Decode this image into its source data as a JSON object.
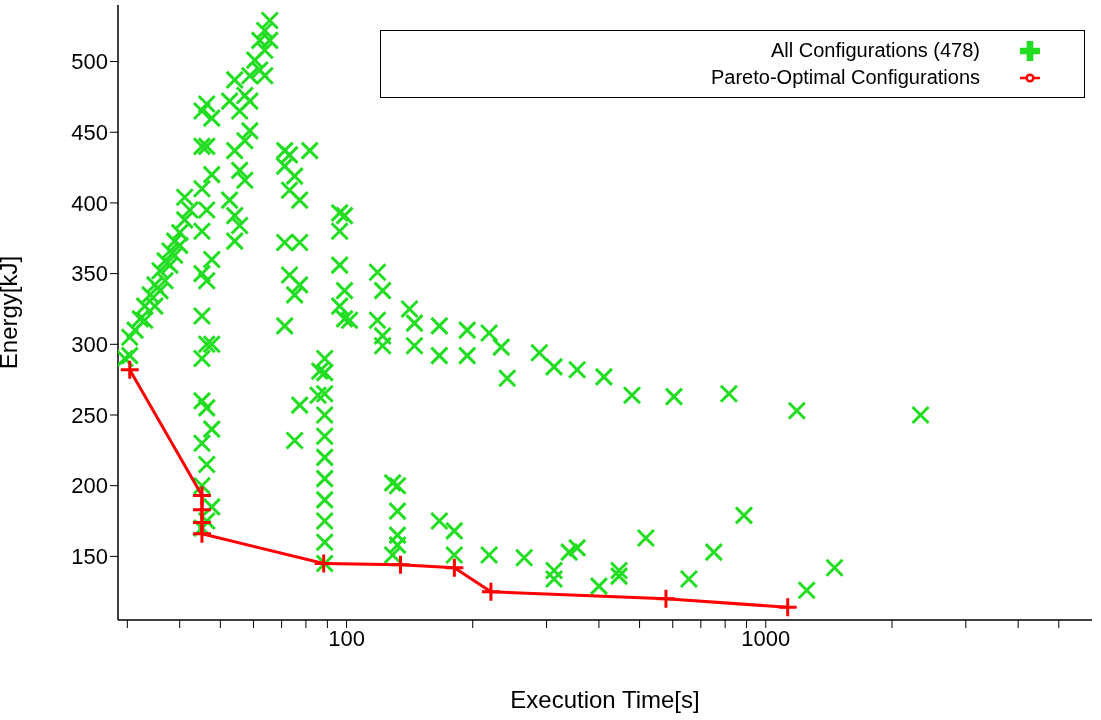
{
  "chart_data": {
    "type": "scatter",
    "xlabel": "Execution Time[s]",
    "ylabel": "Energy[kJ]",
    "log": "x",
    "xlim": [
      28.5,
      6000
    ],
    "ylim": [
      105,
      540
    ],
    "xticks": [
      {
        "value": 30,
        "label": null
      },
      {
        "value": 40,
        "label": null
      },
      {
        "value": 50,
        "label": null
      },
      {
        "value": 60,
        "label": null
      },
      {
        "value": 70,
        "label": null
      },
      {
        "value": 80,
        "label": null
      },
      {
        "value": 90,
        "label": null
      },
      100,
      {
        "value": 200,
        "label": null
      },
      {
        "value": 300,
        "label": null
      },
      {
        "value": 400,
        "label": null
      },
      {
        "value": 500,
        "label": null
      },
      {
        "value": 600,
        "label": null
      },
      {
        "value": 700,
        "label": null
      },
      {
        "value": 800,
        "label": null
      },
      {
        "value": 900,
        "label": null
      },
      1000,
      {
        "value": 2000,
        "label": null
      },
      {
        "value": 3000,
        "label": null
      },
      {
        "value": 4000,
        "label": null
      },
      {
        "value": 5000,
        "label": null
      }
    ],
    "yticks": [
      150,
      200,
      250,
      300,
      350,
      400,
      450,
      500
    ],
    "grid": false,
    "legend": "top right",
    "series": [
      {
        "name": "All Configurations (478)",
        "type": "scatter",
        "color": "#22dd22",
        "marker": "cross",
        "x": [
          29.6,
          30.4,
          30.4,
          31.3,
          32.2,
          33.0,
          34.0,
          34.9,
          35.9,
          36.9,
          37.9,
          38.9,
          40.0,
          41.1,
          42.3,
          41.1,
          33.0,
          34.9,
          35.9,
          36.9,
          37.9,
          38.9,
          40.0,
          45.2,
          45.2,
          45.2,
          45.2,
          45.2,
          45.2,
          45.2,
          45.2,
          45.2,
          45.2,
          45.2,
          46.4,
          46.4,
          46.4,
          46.4,
          46.4,
          46.4,
          46.4,
          46.4,
          47.7,
          47.7,
          47.7,
          47.7,
          47.7,
          47.7,
          52.6,
          54.1,
          55.6,
          57.2,
          58.8,
          54.1,
          55.6,
          57.2,
          52.6,
          54.1,
          54.1,
          55.6,
          57.2,
          58.8,
          58.8,
          60.4,
          62.1,
          63.8,
          65.6,
          62.1,
          63.8,
          65.6,
          63.8,
          71.2,
          73.1,
          71.2,
          75.2,
          73.1,
          77.3,
          81.7,
          71.2,
          77.3,
          73.1,
          75.2,
          71.2,
          77.3,
          75.2,
          77.3,
          88.7,
          88.7,
          88.7,
          88.7,
          88.7,
          88.7,
          88.7,
          88.7,
          88.7,
          88.7,
          88.7,
          86.3,
          85.5,
          96.3,
          98.9,
          96.3,
          96.3,
          98.9,
          96.3,
          101.7,
          98.9,
          118.5,
          121.9,
          118.5,
          121.9,
          121.9,
          128.8,
          132.3,
          132.3,
          132.3,
          128.8,
          132.3,
          141.3,
          145.2,
          145.2,
          166.5,
          166.5,
          194,
          194,
          166.5,
          180.7,
          180.7,
          218.8,
          233.9,
          241.7,
          218.8,
          265.3,
          312.6,
          312.6,
          288.3,
          312.6,
          354.9,
          411,
          479.6,
          604,
          816.6,
          1186,
          2339,
          339.6,
          354.9,
          400,
          446.7,
          446.7,
          517.6,
          655.6,
          751.6,
          887,
          1252,
          1459
        ],
        "values": [
          290,
          305,
          292,
          310,
          318,
          327,
          335,
          342,
          352,
          359,
          366,
          373,
          379,
          388,
          395,
          404,
          317,
          327,
          338,
          345,
          356,
          363,
          370,
          170,
          200,
          230,
          260,
          290,
          320,
          350,
          380,
          410,
          440,
          465,
          175,
          215,
          255,
          300,
          345,
          395,
          440,
          470,
          185,
          240,
          300,
          360,
          420,
          460,
          472,
          487,
          465,
          476,
          451,
          437,
          423,
          444,
          402,
          391,
          373,
          384,
          416,
          472,
          490,
          501,
          515,
          522,
          529,
          494,
          508,
          515,
          490,
          437,
          434,
          426,
          419,
          409,
          402,
          437,
          372,
          372,
          349,
          335,
          313,
          342,
          232,
          257,
          145,
          160,
          175,
          190,
          205,
          220,
          235,
          250,
          265,
          280,
          290,
          281,
          264,
          393,
          391,
          380,
          356,
          338,
          327,
          317,
          318,
          351,
          338,
          317,
          306,
          299,
          202,
          200,
          182,
          165,
          151,
          158,
          325,
          315,
          299,
          313,
          292,
          310,
          292,
          175,
          168,
          151,
          308,
          298,
          276,
          151,
          149,
          140,
          134,
          294,
          284,
          282,
          277,
          264,
          263,
          265,
          253,
          250,
          153,
          156,
          129,
          140,
          136,
          163,
          134,
          153,
          179,
          126,
          142
        ]
      },
      {
        "name": "Pareto-Optimal Configurations",
        "type": "line",
        "color": "#ff0000",
        "marker": "cross",
        "line_style": "solid",
        "x": [
          30.4,
          45.2,
          45.2,
          45.2,
          45.2,
          88.2,
          134.5,
          180.8,
          221,
          578,
          1128
        ],
        "values": [
          282,
          193,
          183,
          174,
          166,
          145,
          144,
          142,
          125,
          120,
          114
        ]
      }
    ]
  }
}
